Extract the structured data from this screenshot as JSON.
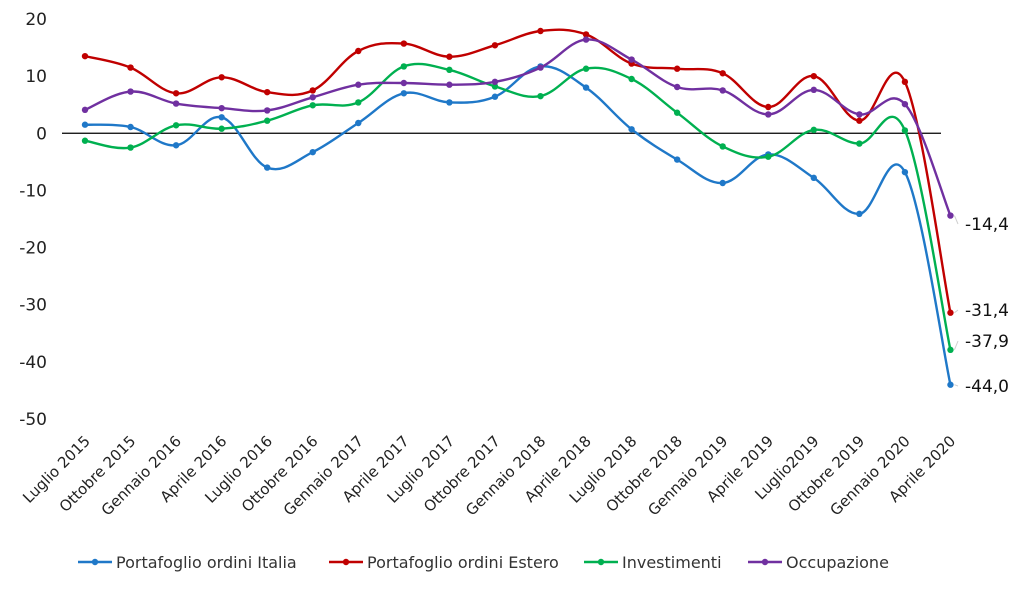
{
  "chart_data": {
    "type": "line",
    "title": "",
    "xlabel": "",
    "ylabel": "",
    "ylim": [
      -50,
      20
    ],
    "yticks": [
      20,
      10,
      0,
      -10,
      -20,
      -30,
      -40,
      -50
    ],
    "categories": [
      "Luglio 2015",
      "Ottobre 2015",
      "Gennaio 2016",
      "Aprile 2016",
      "Luglio 2016",
      "Ottobre 2016",
      "Gennaio 2017",
      "Aprile 2017",
      "Luglio 2017",
      "Ottobre 2017",
      "Gennaio 2018",
      "Aprile 2018",
      "Luglio 2018",
      "Ottobre 2018",
      "Gennaio 2019",
      "Aprile 2019",
      "Luglio2019",
      "Ottobre 2019",
      "Gennaio 2020",
      "Aprile 2020"
    ],
    "series": [
      {
        "name": "Portafoglio ordini Italia",
        "color": "#1f78c8",
        "values": [
          1.5,
          1.1,
          -2.1,
          2.8,
          -6.0,
          -3.3,
          1.8,
          7.0,
          5.4,
          6.4,
          11.7,
          8.0,
          0.7,
          -4.6,
          -8.7,
          -3.7,
          -7.8,
          -14.1,
          -6.8,
          -44.0
        ]
      },
      {
        "name": "Portafoglio ordini Estero",
        "color": "#c00000",
        "values": [
          13.5,
          11.5,
          7.0,
          9.8,
          7.2,
          7.5,
          14.4,
          15.7,
          13.4,
          15.4,
          17.9,
          17.3,
          12.2,
          11.3,
          10.5,
          4.6,
          10.0,
          2.2,
          9.0,
          -31.4
        ]
      },
      {
        "name": "Investimenti",
        "color": "#00b050",
        "values": [
          -1.3,
          -2.5,
          1.4,
          0.8,
          2.2,
          4.9,
          5.4,
          11.7,
          11.1,
          8.2,
          6.5,
          11.3,
          9.5,
          3.6,
          -2.3,
          -4.1,
          0.6,
          -1.8,
          0.5,
          -37.9
        ]
      },
      {
        "name": "Occupazione",
        "color": "#7030a0",
        "values": [
          4.1,
          7.3,
          5.2,
          4.4,
          4.0,
          6.3,
          8.5,
          8.8,
          8.5,
          9.0,
          11.5,
          16.4,
          12.9,
          8.1,
          7.5,
          3.3,
          7.6,
          3.3,
          5.1,
          -14.4
        ]
      }
    ],
    "data_labels": [
      {
        "series": "Occupazione",
        "text": "-14,4"
      },
      {
        "series": "Portafoglio ordini Estero",
        "text": "-31,4"
      },
      {
        "series": "Investimenti",
        "text": "-37,9"
      },
      {
        "series": "Portafoglio ordini Italia",
        "text": "-44,0"
      }
    ],
    "grid": false,
    "legend": "bottom"
  }
}
